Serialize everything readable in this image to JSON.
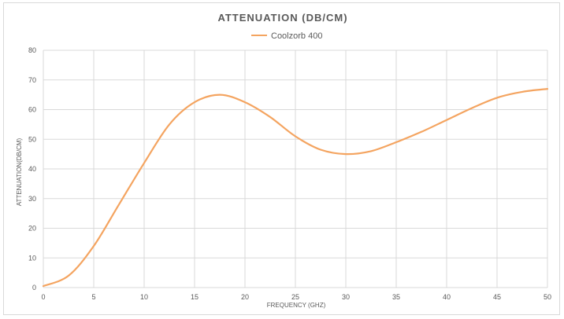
{
  "chart_data": {
    "type": "line",
    "title": "ATTENUATION  (DB/CM)",
    "xlabel": "FREQUENCY (GHZ)",
    "ylabel": "ATTENUATION(DB/CM)",
    "xlim": [
      0,
      50
    ],
    "ylim": [
      0,
      80
    ],
    "x_ticks": [
      0,
      5,
      10,
      15,
      20,
      25,
      30,
      35,
      40,
      45,
      50
    ],
    "y_ticks": [
      0,
      10,
      20,
      30,
      40,
      50,
      60,
      70,
      80
    ],
    "grid": true,
    "legend_position": "top-center",
    "series": [
      {
        "name": "Coolzorb 400",
        "color": "#F4A460",
        "x": [
          0,
          2.5,
          5,
          7.5,
          10,
          12.5,
          15,
          17.5,
          20,
          22.5,
          25,
          27.5,
          30,
          32.5,
          35,
          37.5,
          40,
          42.5,
          45,
          47.5,
          50
        ],
        "y": [
          0.5,
          4,
          14,
          28,
          42,
          55,
          62.5,
          65,
          62.5,
          57.5,
          51,
          46.5,
          45,
          46,
          49,
          52.5,
          56.5,
          60.5,
          64,
          66,
          67
        ]
      }
    ]
  }
}
